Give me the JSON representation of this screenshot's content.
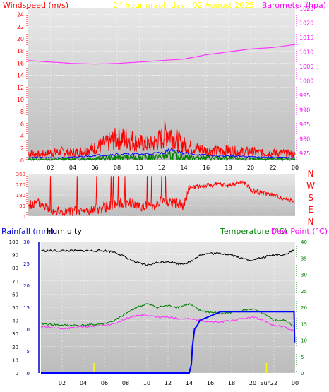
{
  "header": {
    "left_label": "Windspeed (m/s)",
    "center_title": "24 hour graph day : 02 August 2025",
    "right_label": "Barometer (hpa)"
  },
  "lower_header": {
    "rainfall_label": "Rainfall (mm)",
    "humidity_label": "Humidity",
    "temperature_label": "Temperature (°C)",
    "dewpoint_label": "Dew Point (°C)"
  },
  "colors": {
    "windspeed": "#ff0000",
    "gust": "#ff0000",
    "wind_avg": "#0000ff",
    "wind_green": "#008000",
    "barometer": "#ff33ff",
    "direction": "#ff0000",
    "humidity": "#000000",
    "temperature": "#008000",
    "dewpoint": "#ff33ff",
    "rainfall": "#0000ff",
    "marker": "#ffff00"
  },
  "chart_data": [
    {
      "type": "line",
      "name": "wind-barometer",
      "xlabel": "",
      "x_ticks": [
        "02",
        "04",
        "06",
        "08",
        "10",
        "12",
        "14",
        "16",
        "18",
        "20",
        "22",
        "00"
      ],
      "y_left": {
        "label": "Windspeed (m/s)",
        "ylim": [
          0,
          25
        ],
        "ticks": [
          0,
          2,
          4,
          6,
          8,
          10,
          12,
          14,
          16,
          18,
          20,
          22,
          24
        ]
      },
      "y_right": {
        "label": "Barometer (hpa)",
        "ylim": [
          972.5,
          1025
        ],
        "ticks": [
          975,
          980,
          985,
          990,
          995,
          1000,
          1005,
          1010,
          1015,
          1020,
          1025
        ]
      },
      "barometer": {
        "x": [
          0,
          2,
          4,
          6,
          8,
          10,
          12,
          14,
          16,
          18,
          20,
          22,
          24
        ],
        "values": [
          1007,
          1006.5,
          1006,
          1005.8,
          1006,
          1006.5,
          1007,
          1007.5,
          1009,
          1010,
          1011,
          1011.5,
          1012.5
        ]
      },
      "gust": {
        "x": [
          0,
          1,
          2,
          3,
          4,
          5,
          6,
          7,
          8,
          9,
          10,
          11,
          12,
          12.5,
          13,
          13.5,
          14,
          15,
          16,
          17,
          18,
          19,
          20,
          21,
          22,
          23,
          24
        ],
        "values": [
          1.5,
          1.2,
          1.5,
          1.8,
          1.5,
          2,
          2.5,
          3.5,
          4.5,
          4.5,
          3.5,
          3.2,
          4.5,
          6,
          5,
          4,
          3.2,
          2.5,
          2,
          2,
          2,
          1.8,
          1.8,
          1.5,
          1.5,
          1.5,
          1.2
        ]
      },
      "average": {
        "x": [
          0,
          2,
          4,
          6,
          8,
          10,
          12,
          13,
          14,
          16,
          18,
          20,
          22,
          24
        ],
        "values": [
          0.5,
          0.4,
          0.5,
          0.8,
          1,
          1,
          1.2,
          1.8,
          1.2,
          0.8,
          0.7,
          0.6,
          0.5,
          0.4
        ]
      },
      "lull": {
        "x": [
          0,
          2,
          4,
          6,
          8,
          10,
          12,
          13,
          14,
          16,
          18,
          20,
          22,
          24
        ],
        "values": [
          0.2,
          0.2,
          0.3,
          0.4,
          0.6,
          0.6,
          0.7,
          1,
          0.7,
          0.5,
          0.4,
          0.3,
          0.3,
          0.2
        ]
      }
    },
    {
      "type": "line",
      "name": "wind-direction",
      "x_ticks": [
        "02",
        "04",
        "06",
        "08",
        "10",
        "12",
        "14",
        "16",
        "18",
        "20",
        "22",
        "00"
      ],
      "y_left": {
        "ylim": [
          0,
          360
        ],
        "ticks": [
          0,
          45,
          90,
          135,
          180,
          225,
          270,
          315,
          360
        ]
      },
      "y_right": {
        "ticks": [
          "N",
          "W",
          "S",
          "E",
          "N"
        ]
      },
      "direction": {
        "x": [
          0,
          1,
          2,
          3,
          4,
          5,
          6,
          7,
          8,
          9,
          10,
          11,
          12,
          13,
          14,
          14.5,
          15,
          16,
          17,
          18,
          19,
          19.5,
          20,
          21,
          22,
          23,
          24
        ],
        "values": [
          90,
          110,
          60,
          30,
          40,
          40,
          50,
          80,
          100,
          110,
          90,
          80,
          130,
          110,
          90,
          240,
          250,
          260,
          270,
          260,
          290,
          280,
          220,
          200,
          180,
          150,
          130
        ]
      }
    },
    {
      "type": "line",
      "name": "temp-humidity-rain",
      "x_ticks": [
        "02",
        "04",
        "06",
        "08",
        "10",
        "12",
        "14",
        "16",
        "18",
        "20",
        "Sun",
        "22",
        "00"
      ],
      "y_humidity": {
        "ylim": [
          0,
          100
        ],
        "ticks": [
          0,
          10,
          20,
          30,
          40,
          50,
          60,
          70,
          80,
          90,
          100
        ]
      },
      "y_rainfall": {
        "ylim": [
          0,
          30
        ],
        "ticks": [
          0,
          5,
          10,
          15,
          20,
          25,
          30
        ]
      },
      "y_temperature": {
        "ylim": [
          0,
          40
        ],
        "ticks": [
          0,
          5,
          10,
          15,
          20,
          25,
          30,
          35,
          40
        ]
      },
      "humidity": {
        "x": [
          0,
          2,
          4,
          6,
          7,
          8,
          9,
          10,
          11,
          12,
          13,
          14,
          15,
          16,
          17,
          18,
          19,
          20,
          21,
          22,
          23,
          24
        ],
        "values": [
          93,
          93,
          93,
          93,
          92,
          88,
          84,
          82,
          84,
          85,
          83,
          84,
          90,
          91,
          91,
          90,
          87,
          86,
          88,
          90,
          90,
          94
        ]
      },
      "temperature": {
        "x": [
          0,
          2,
          4,
          6,
          7,
          8,
          9,
          10,
          11,
          12,
          13,
          14,
          15,
          16,
          17,
          18,
          19,
          20,
          21,
          22,
          23,
          24
        ],
        "values": [
          15,
          14.5,
          14.5,
          15,
          16,
          18,
          20,
          21,
          20,
          20.5,
          20,
          21,
          19,
          18.5,
          18,
          18.5,
          19,
          19.5,
          18,
          16,
          16,
          14
        ]
      },
      "dewpoint": {
        "x": [
          0,
          2,
          4,
          6,
          7,
          8,
          9,
          10,
          11,
          12,
          13,
          14,
          15,
          16,
          17,
          18,
          19,
          20,
          21,
          22,
          23,
          24
        ],
        "values": [
          14,
          13.5,
          14,
          14.5,
          15,
          16.5,
          17.5,
          17.5,
          17,
          17,
          16.5,
          16.5,
          16,
          15.5,
          15.5,
          16,
          16.5,
          17,
          16,
          14.5,
          14,
          12.5
        ]
      },
      "rainfall": {
        "x": [
          0,
          2,
          4,
          6,
          8,
          10,
          12,
          14,
          14.2,
          14.3,
          14.5,
          14.8,
          15,
          15.5,
          16,
          16.5,
          17,
          18,
          20,
          22,
          23.9,
          24
        ],
        "values": [
          0,
          0,
          0,
          0,
          0,
          0,
          0,
          0,
          2,
          6,
          10,
          11,
          12,
          12.5,
          13,
          13.5,
          14,
          14,
          14,
          14,
          14,
          0
        ]
      }
    }
  ]
}
